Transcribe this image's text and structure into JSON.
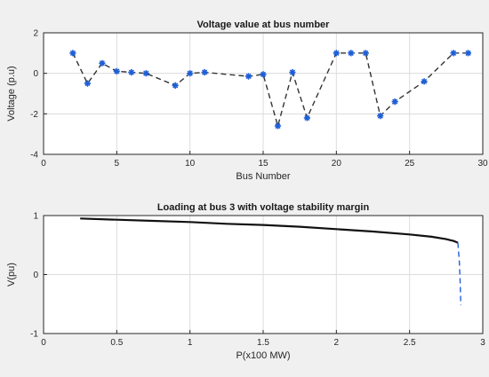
{
  "chart_data": [
    {
      "type": "line",
      "title": "Voltage value at bus number",
      "xlabel": "Bus Number",
      "ylabel": "Voltage (p.u)",
      "xlim": [
        0,
        30
      ],
      "ylim": [
        -4,
        2
      ],
      "xticks": [
        0,
        5,
        10,
        15,
        20,
        25,
        30
      ],
      "yticks": [
        -4,
        -2,
        0,
        2
      ],
      "grid": true,
      "series": [
        {
          "line_style": "dashed",
          "line_color": "#333333",
          "marker": "star",
          "marker_color": "#1f5fd6",
          "x": [
            2,
            3,
            4,
            5,
            6,
            7,
            9,
            10,
            11,
            14,
            15,
            16,
            17,
            18,
            20,
            21,
            22,
            23,
            24,
            26,
            28,
            29
          ],
          "y": [
            1.0,
            -0.5,
            0.5,
            0.1,
            0.05,
            0.0,
            -0.6,
            0.0,
            0.05,
            -0.15,
            -0.05,
            -2.6,
            0.05,
            -2.2,
            1.0,
            1.0,
            1.0,
            -2.1,
            -1.4,
            -0.4,
            1.0,
            1.0
          ]
        }
      ]
    },
    {
      "type": "line",
      "title": "Loading at bus 3 with voltage stability margin",
      "xlabel": "P(x100 MW)",
      "ylabel": "V(pu)",
      "xlim": [
        0,
        3
      ],
      "ylim": [
        -1,
        1
      ],
      "xticks": [
        0,
        0.5,
        1,
        1.5,
        2,
        2.5,
        3
      ],
      "yticks": [
        -1,
        0,
        1
      ],
      "grid": true,
      "series": [
        {
          "line_style": "solid",
          "line_color": "#111111",
          "x": [
            0.25,
            0.5,
            0.75,
            1.0,
            1.25,
            1.5,
            1.75,
            2.0,
            2.25,
            2.5,
            2.65,
            2.75,
            2.8,
            2.83
          ],
          "y": [
            0.95,
            0.93,
            0.91,
            0.89,
            0.86,
            0.84,
            0.81,
            0.77,
            0.73,
            0.68,
            0.64,
            0.6,
            0.57,
            0.54
          ]
        },
        {
          "line_style": "dashed",
          "line_color": "#1f5fd6",
          "x": [
            2.83,
            2.84,
            2.845,
            2.85
          ],
          "y": [
            0.54,
            0.2,
            -0.1,
            -0.52
          ]
        }
      ]
    }
  ]
}
